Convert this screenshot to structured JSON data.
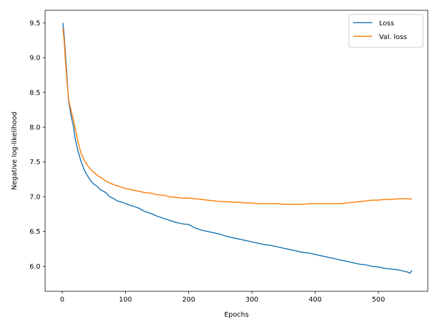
{
  "chart_data": {
    "type": "line",
    "title": "",
    "xlabel": "Epochs",
    "ylabel": "Negative log-likelihood",
    "xlim": [
      -27,
      578
    ],
    "ylim": [
      5.64,
      9.68
    ],
    "xticks": [
      0,
      100,
      200,
      300,
      400,
      500
    ],
    "xtick_labels": [
      "0",
      "100",
      "200",
      "300",
      "400",
      "500"
    ],
    "yticks": [
      6.0,
      6.5,
      7.0,
      7.5,
      8.0,
      8.5,
      9.0,
      9.5
    ],
    "ytick_labels": [
      "6.0",
      "6.5",
      "7.0",
      "7.5",
      "8.0",
      "8.5",
      "9.0",
      "9.5"
    ],
    "grid": false,
    "legend_position": "top-right",
    "series": [
      {
        "name": "Loss",
        "color": "#1f77b4",
        "x": [
          1,
          3,
          5,
          8,
          10,
          13,
          15,
          18,
          20,
          25,
          30,
          35,
          40,
          45,
          50,
          55,
          60,
          65,
          70,
          75,
          80,
          85,
          90,
          95,
          100,
          110,
          120,
          130,
          140,
          150,
          160,
          170,
          180,
          190,
          200,
          210,
          220,
          230,
          240,
          250,
          260,
          270,
          280,
          290,
          300,
          310,
          320,
          330,
          340,
          350,
          360,
          370,
          380,
          390,
          400,
          410,
          420,
          430,
          440,
          450,
          460,
          470,
          480,
          490,
          500,
          510,
          520,
          530,
          540,
          545,
          550,
          553
        ],
        "y": [
          9.5,
          9.32,
          9.05,
          8.65,
          8.38,
          8.22,
          8.12,
          8.0,
          7.85,
          7.65,
          7.5,
          7.38,
          7.3,
          7.23,
          7.18,
          7.15,
          7.1,
          7.08,
          7.05,
          7.0,
          6.98,
          6.95,
          6.93,
          6.92,
          6.9,
          6.87,
          6.84,
          6.79,
          6.76,
          6.72,
          6.69,
          6.66,
          6.63,
          6.61,
          6.6,
          6.55,
          6.52,
          6.5,
          6.48,
          6.46,
          6.43,
          6.41,
          6.39,
          6.37,
          6.35,
          6.33,
          6.31,
          6.3,
          6.28,
          6.26,
          6.24,
          6.22,
          6.2,
          6.19,
          6.17,
          6.15,
          6.13,
          6.11,
          6.09,
          6.07,
          6.05,
          6.03,
          6.02,
          6.0,
          5.99,
          5.97,
          5.96,
          5.95,
          5.93,
          5.92,
          5.9,
          5.94
        ]
      },
      {
        "name": "Val. loss",
        "color": "#ff7f0e",
        "x": [
          1,
          3,
          5,
          8,
          10,
          13,
          15,
          18,
          20,
          25,
          30,
          35,
          40,
          45,
          50,
          55,
          60,
          65,
          70,
          75,
          80,
          85,
          90,
          95,
          100,
          110,
          120,
          130,
          140,
          150,
          160,
          170,
          180,
          190,
          200,
          210,
          220,
          230,
          240,
          250,
          260,
          270,
          280,
          290,
          300,
          310,
          320,
          330,
          340,
          350,
          360,
          370,
          380,
          390,
          400,
          410,
          420,
          430,
          440,
          450,
          460,
          470,
          480,
          490,
          500,
          510,
          520,
          530,
          540,
          545,
          550,
          553
        ],
        "y": [
          9.42,
          9.25,
          8.95,
          8.6,
          8.4,
          8.28,
          8.2,
          8.1,
          8.0,
          7.78,
          7.62,
          7.52,
          7.45,
          7.39,
          7.35,
          7.31,
          7.28,
          7.25,
          7.22,
          7.2,
          7.18,
          7.16,
          7.15,
          7.13,
          7.12,
          7.1,
          7.08,
          7.06,
          7.05,
          7.03,
          7.02,
          7.0,
          6.99,
          6.98,
          6.98,
          6.97,
          6.96,
          6.95,
          6.94,
          6.93,
          6.93,
          6.92,
          6.92,
          6.91,
          6.91,
          6.9,
          6.9,
          6.9,
          6.9,
          6.89,
          6.89,
          6.89,
          6.89,
          6.9,
          6.9,
          6.9,
          6.9,
          6.9,
          6.9,
          6.91,
          6.92,
          6.93,
          6.94,
          6.95,
          6.95,
          6.96,
          6.96,
          6.97,
          6.97,
          6.97,
          6.97,
          6.96
        ]
      }
    ]
  }
}
